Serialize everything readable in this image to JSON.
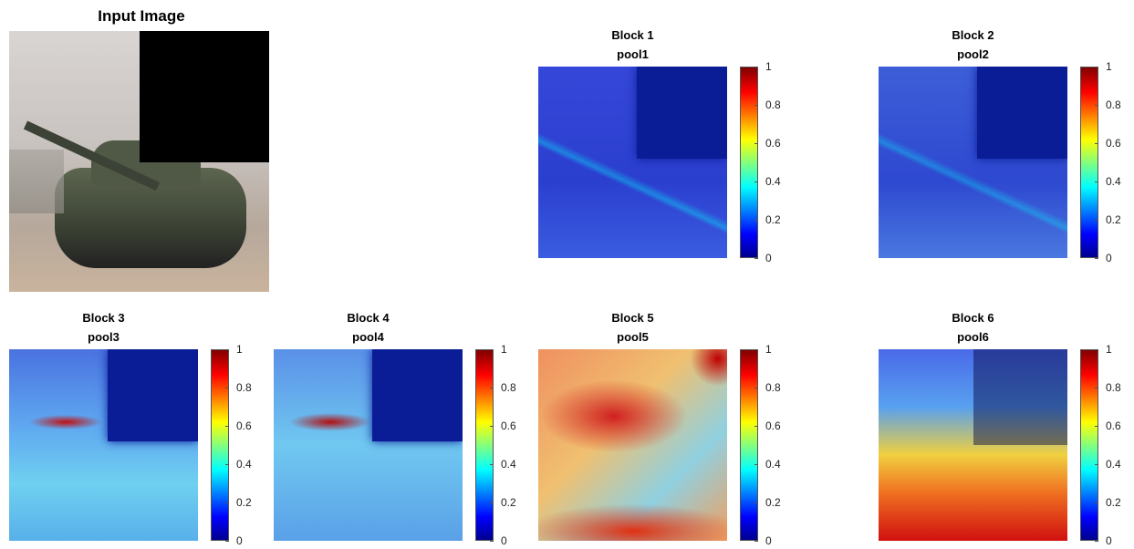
{
  "input": {
    "title": "Input Image"
  },
  "panels": [
    {
      "title": "Block 1",
      "subtitle": "pool1"
    },
    {
      "title": "Block 2",
      "subtitle": "pool2"
    },
    {
      "title": "Block 3",
      "subtitle": "pool3"
    },
    {
      "title": "Block 4",
      "subtitle": "pool4"
    },
    {
      "title": "Block 5",
      "subtitle": "pool5"
    },
    {
      "title": "Block 6",
      "subtitle": "pool6"
    }
  ],
  "colorbar": {
    "ticks": [
      0,
      0.2,
      0.4,
      0.6,
      0.8,
      1
    ]
  }
}
